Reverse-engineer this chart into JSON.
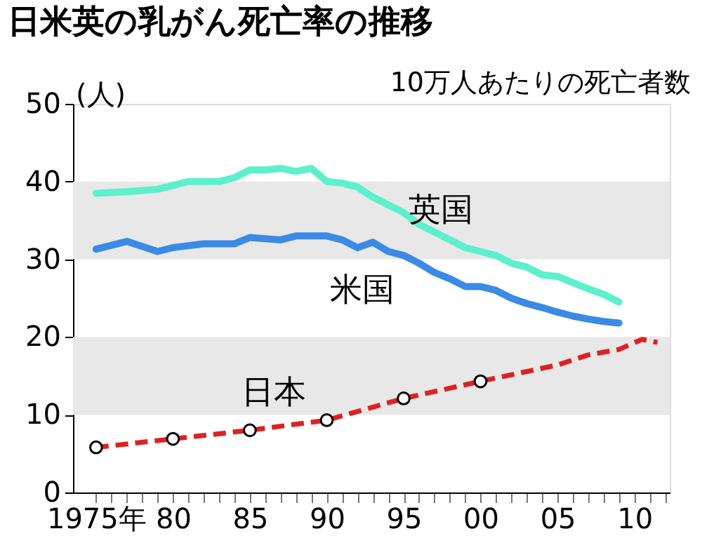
{
  "chart_data": {
    "type": "line",
    "title": "日米英の乳がん死亡率の推移",
    "subtitle": "10万人あたりの死亡者数",
    "ylabel": "(人)",
    "xlim": [
      1973.5,
      2012.3
    ],
    "ylim": [
      0,
      50
    ],
    "yticks": [
      0,
      10,
      20,
      30,
      40,
      50
    ],
    "xticks": [
      {
        "value": 1975,
        "label": "1975年"
      },
      {
        "value": 1976,
        "label": null
      },
      {
        "value": 1977,
        "label": null
      },
      {
        "value": 1978,
        "label": null
      },
      {
        "value": 1979,
        "label": null
      },
      {
        "value": 1980,
        "label": "80"
      },
      {
        "value": 1981,
        "label": null
      },
      {
        "value": 1982,
        "label": null
      },
      {
        "value": 1983,
        "label": null
      },
      {
        "value": 1984,
        "label": null
      },
      {
        "value": 1985,
        "label": "85"
      },
      {
        "value": 1986,
        "label": null
      },
      {
        "value": 1987,
        "label": null
      },
      {
        "value": 1988,
        "label": null
      },
      {
        "value": 1989,
        "label": null
      },
      {
        "value": 1990,
        "label": "90"
      },
      {
        "value": 1991,
        "label": null
      },
      {
        "value": 1992,
        "label": null
      },
      {
        "value": 1993,
        "label": null
      },
      {
        "value": 1994,
        "label": null
      },
      {
        "value": 1995,
        "label": "95"
      },
      {
        "value": 1996,
        "label": null
      },
      {
        "value": 1997,
        "label": null
      },
      {
        "value": 1998,
        "label": null
      },
      {
        "value": 1999,
        "label": null
      },
      {
        "value": 2000,
        "label": "00"
      },
      {
        "value": 2001,
        "label": null
      },
      {
        "value": 2002,
        "label": null
      },
      {
        "value": 2003,
        "label": null
      },
      {
        "value": 2004,
        "label": null
      },
      {
        "value": 2005,
        "label": "05"
      },
      {
        "value": 2006,
        "label": null
      },
      {
        "value": 2007,
        "label": null
      },
      {
        "value": 2008,
        "label": null
      },
      {
        "value": 2009,
        "label": null
      },
      {
        "value": 2010,
        "label": "10"
      },
      {
        "value": 2011,
        "label": null
      },
      {
        "value": 2012,
        "label": null
      }
    ],
    "bands": [
      {
        "axis": "y",
        "from": 10,
        "to": 20,
        "color": "#e8e8e8"
      },
      {
        "axis": "y",
        "from": 30,
        "to": 40,
        "color": "#e8e8e8"
      }
    ],
    "series": [
      {
        "name": "英国",
        "type": "line",
        "color": "#5cf0cc",
        "line_style": "solid",
        "x": [
          1975,
          1977,
          1979,
          1980,
          1981,
          1983,
          1984,
          1985,
          1986,
          1987,
          1988,
          1989,
          1990,
          1991,
          1992,
          1993,
          1994,
          1995,
          1996,
          1997,
          1998,
          1999,
          2000,
          2001,
          2002,
          2003,
          2004,
          2005,
          2006,
          2007,
          2008,
          2009
        ],
        "values": [
          38.5,
          38.7,
          39,
          39.5,
          40,
          40,
          40.5,
          41.5,
          41.5,
          41.7,
          41.3,
          41.7,
          40,
          39.8,
          39.3,
          38,
          37,
          36,
          34.5,
          33.5,
          32.5,
          31.5,
          31,
          30.5,
          29.5,
          29,
          28,
          27.8,
          27,
          26.2,
          25.5,
          24.5
        ]
      },
      {
        "name": "米国",
        "type": "line",
        "color": "#3b8ae6",
        "line_style": "solid",
        "x": [
          1975,
          1977,
          1979,
          1980,
          1982,
          1984,
          1985,
          1987,
          1988,
          1990,
          1991,
          1992,
          1993,
          1994,
          1995,
          1996,
          1997,
          1998,
          1999,
          2000,
          2001,
          2002,
          2003,
          2004,
          2005,
          2006,
          2007,
          2008,
          2009
        ],
        "values": [
          31.3,
          32.3,
          31,
          31.5,
          32,
          32,
          32.8,
          32.5,
          33,
          33,
          32.5,
          31.5,
          32.2,
          31,
          30.5,
          29.5,
          28.3,
          27.5,
          26.5,
          26.5,
          26,
          25,
          24.3,
          23.8,
          23.2,
          22.7,
          22.3,
          22,
          21.8
        ]
      },
      {
        "name": "日本",
        "type": "line",
        "color": "#dd2222",
        "line_style": "dashed",
        "x": [
          1975,
          1980,
          1985,
          1990,
          1995,
          2000,
          2005,
          2007,
          2009,
          2010.5,
          2011.5
        ],
        "values": [
          5.8,
          6.9,
          8,
          9.3,
          12.1,
          14.3,
          16.4,
          17.7,
          18.4,
          19.7,
          19.3
        ]
      },
      {
        "type": "scatter",
        "color": "#000000",
        "marker": "circle",
        "x": [
          1975,
          1980,
          1985,
          1990,
          1995,
          2000
        ],
        "values": [
          5.8,
          6.9,
          8,
          9.3,
          12.1,
          14.3
        ]
      }
    ]
  }
}
